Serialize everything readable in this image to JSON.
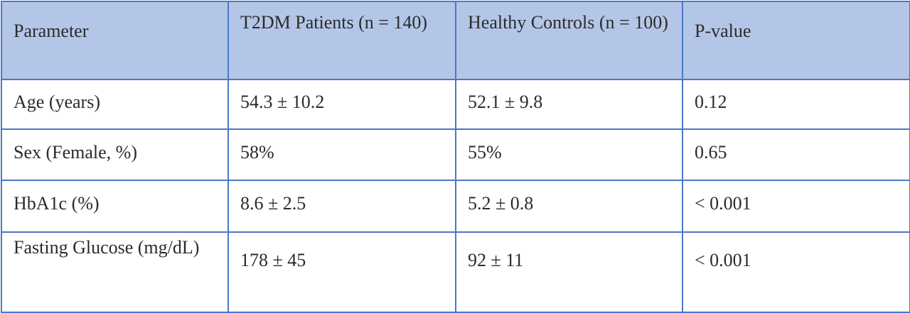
{
  "table": {
    "headers": [
      "Parameter",
      "T2DM Patients (n = 140)",
      "Healthy Controls (n = 100)",
      "P-value"
    ],
    "rows": [
      [
        "Age (years)",
        "54.3 ± 10.2",
        "52.1 ± 9.8",
        "0.12"
      ],
      [
        "Sex (Female, %)",
        "58%",
        "55%",
        "0.65"
      ],
      [
        "HbA1c (%)",
        "8.6 ± 2.5",
        "5.2 ± 0.8",
        "< 0.001"
      ],
      [
        "Fasting Glucose (mg/dL)",
        "178 ± 45",
        "92 ± 11",
        "< 0.001"
      ]
    ],
    "header_background": "#b4c6e7",
    "border_color": "#4a78c6"
  }
}
